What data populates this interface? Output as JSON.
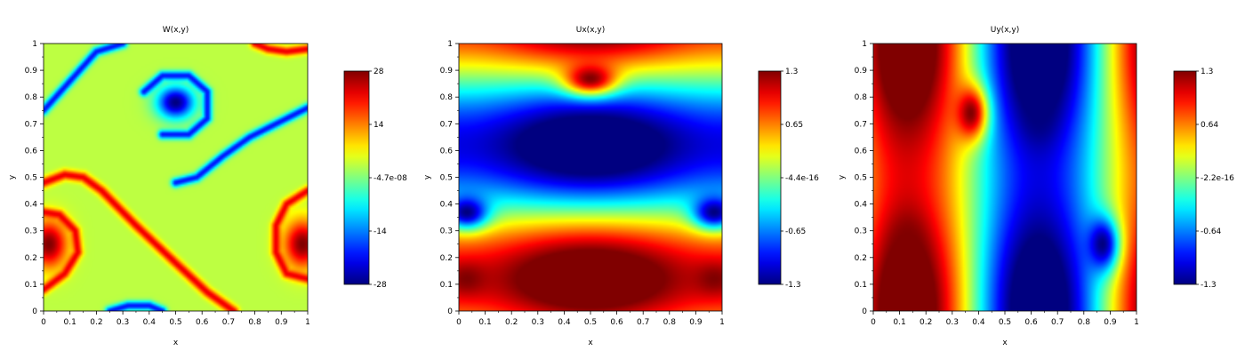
{
  "chart_data": [
    {
      "type": "heatmap",
      "title": "W(x,y)",
      "xlabel": "x",
      "ylabel": "y",
      "xlim": [
        0,
        1
      ],
      "ylim": [
        0,
        1
      ],
      "x_ticks": [
        "0",
        "0.1",
        "0.2",
        "0.3",
        "0.4",
        "0.5",
        "0.6",
        "0.7",
        "0.8",
        "0.9",
        "1"
      ],
      "y_ticks": [
        "0",
        "0.1",
        "0.2",
        "0.3",
        "0.4",
        "0.5",
        "0.6",
        "0.7",
        "0.8",
        "0.9",
        "1"
      ],
      "colorbar_range": [
        -28,
        28
      ],
      "colorbar_ticks": [
        "28",
        "14",
        "-4.7e-08",
        "-14",
        "-28"
      ],
      "colormap": "jet",
      "background_value": 0.8,
      "blobs": [
        {
          "x": 0.5,
          "y": 0.78,
          "value": -28,
          "rx": 0.07,
          "ry": 0.06
        },
        {
          "x": 0.02,
          "y": 0.25,
          "value": 28,
          "rx": 0.07,
          "ry": 0.09
        },
        {
          "x": 0.98,
          "y": 0.25,
          "value": 28,
          "rx": 0.07,
          "ry": 0.09
        }
      ],
      "filaments": [
        {
          "value": -20,
          "width": 0.012,
          "points": [
            [
              0.0,
              0.75
            ],
            [
              0.1,
              0.86
            ],
            [
              0.2,
              0.97
            ],
            [
              0.3,
              1.0
            ]
          ]
        },
        {
          "value": -20,
          "width": 0.012,
          "points": [
            [
              0.5,
              0.48
            ],
            [
              0.58,
              0.5
            ],
            [
              0.68,
              0.58
            ],
            [
              0.78,
              0.65
            ],
            [
              0.9,
              0.71
            ],
            [
              1.0,
              0.76
            ]
          ]
        },
        {
          "value": -20,
          "width": 0.012,
          "points": [
            [
              0.38,
              0.82
            ],
            [
              0.45,
              0.88
            ],
            [
              0.55,
              0.88
            ],
            [
              0.62,
              0.82
            ],
            [
              0.62,
              0.72
            ],
            [
              0.55,
              0.66
            ],
            [
              0.45,
              0.66
            ]
          ]
        },
        {
          "value": -20,
          "width": 0.012,
          "points": [
            [
              0.25,
              0.0
            ],
            [
              0.32,
              0.02
            ],
            [
              0.4,
              0.02
            ],
            [
              0.45,
              0.0
            ]
          ]
        },
        {
          "value": 22,
          "width": 0.013,
          "points": [
            [
              0.0,
              0.48
            ],
            [
              0.08,
              0.51
            ],
            [
              0.15,
              0.5
            ],
            [
              0.22,
              0.45
            ],
            [
              0.35,
              0.32
            ],
            [
              0.5,
              0.18
            ],
            [
              0.62,
              0.07
            ],
            [
              0.72,
              0.0
            ]
          ]
        },
        {
          "value": 22,
          "width": 0.012,
          "points": [
            [
              0.0,
              0.08
            ],
            [
              0.08,
              0.14
            ],
            [
              0.13,
              0.22
            ],
            [
              0.12,
              0.3
            ],
            [
              0.06,
              0.36
            ],
            [
              0.0,
              0.37
            ]
          ]
        },
        {
          "value": 22,
          "width": 0.012,
          "points": [
            [
              1.0,
              0.45
            ],
            [
              0.92,
              0.4
            ],
            [
              0.88,
              0.32
            ],
            [
              0.88,
              0.22
            ],
            [
              0.92,
              0.14
            ],
            [
              1.0,
              0.12
            ]
          ]
        },
        {
          "value": 22,
          "width": 0.012,
          "points": [
            [
              0.8,
              1.0
            ],
            [
              0.85,
              0.98
            ],
            [
              0.92,
              0.97
            ],
            [
              1.0,
              0.98
            ]
          ]
        }
      ]
    },
    {
      "type": "heatmap",
      "title": "Ux(x,y)",
      "xlabel": "x",
      "ylabel": "y",
      "xlim": [
        0,
        1
      ],
      "ylim": [
        0,
        1
      ],
      "x_ticks": [
        "0",
        "0.1",
        "0.2",
        "0.3",
        "0.4",
        "0.5",
        "0.6",
        "0.7",
        "0.8",
        "0.9",
        "1"
      ],
      "y_ticks": [
        "0",
        "0.1",
        "0.2",
        "0.3",
        "0.4",
        "0.5",
        "0.6",
        "0.7",
        "0.8",
        "0.9",
        "1"
      ],
      "colorbar_range": [
        -1.3,
        1.3
      ],
      "colorbar_ticks": [
        "1.3",
        "0.65",
        "-4.4e-16",
        "-0.65",
        "-1.3"
      ],
      "colormap": "jet",
      "field": "ux",
      "blobs": [
        {
          "x": 0.5,
          "y": 0.87,
          "value": 1.3,
          "rx": 0.1,
          "ry": 0.06
        },
        {
          "x": 0.5,
          "y": 0.63,
          "value": -1.3,
          "rx": 0.1,
          "ry": 0.06
        },
        {
          "x": 0.03,
          "y": 0.37,
          "value": -1.3,
          "rx": 0.08,
          "ry": 0.06
        },
        {
          "x": 0.97,
          "y": 0.37,
          "value": -1.3,
          "rx": 0.08,
          "ry": 0.06
        },
        {
          "x": 0.03,
          "y": 0.12,
          "value": 1.3,
          "rx": 0.08,
          "ry": 0.06
        },
        {
          "x": 0.97,
          "y": 0.12,
          "value": 1.3,
          "rx": 0.08,
          "ry": 0.06
        }
      ]
    },
    {
      "type": "heatmap",
      "title": "Uy(x,y)",
      "xlabel": "x",
      "ylabel": "y",
      "xlim": [
        0,
        1
      ],
      "ylim": [
        0,
        1
      ],
      "x_ticks": [
        "0",
        "0.1",
        "0.2",
        "0.3",
        "0.4",
        "0.5",
        "0.6",
        "0.7",
        "0.8",
        "0.9",
        "1"
      ],
      "y_ticks": [
        "0",
        "0.1",
        "0.2",
        "0.3",
        "0.4",
        "0.5",
        "0.6",
        "0.7",
        "0.8",
        "0.9",
        "1"
      ],
      "colorbar_range": [
        -1.3,
        1.3
      ],
      "colorbar_ticks": [
        "1.3",
        "0.64",
        "-2.2e-16",
        "-0.64",
        "-1.3"
      ],
      "colormap": "jet",
      "field": "uy",
      "blobs": [
        {
          "x": 0.37,
          "y": 0.74,
          "value": 1.3,
          "rx": 0.06,
          "ry": 0.1
        },
        {
          "x": 0.63,
          "y": 0.74,
          "value": -1.3,
          "rx": 0.06,
          "ry": 0.1
        },
        {
          "x": 0.13,
          "y": 0.25,
          "value": 1.3,
          "rx": 0.06,
          "ry": 0.1
        },
        {
          "x": 0.87,
          "y": 0.25,
          "value": -1.3,
          "rx": 0.06,
          "ry": 0.1
        }
      ]
    }
  ]
}
